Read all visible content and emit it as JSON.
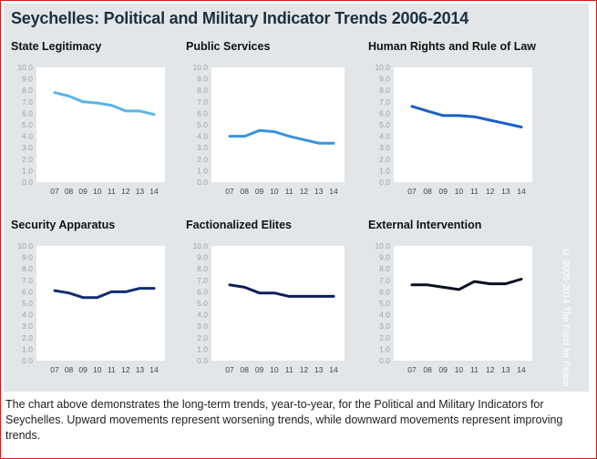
{
  "main_title": "Seychelles:  Political and Military Indicator Trends 2006-2014",
  "copyright": "© 2005-2014 The Fund for Peace",
  "caption": "The chart above demonstrates the long-term trends, year-to-year, for the Political and Military Indicators for Seychelles. Upward movements represent worsening trends, while downward movements represent improving trends.",
  "chart_data": [
    {
      "type": "line",
      "title": "State Legitimacy",
      "color": "#5ab4e8",
      "categories": [
        "07",
        "08",
        "09",
        "10",
        "11",
        "12",
        "13",
        "14"
      ],
      "values": [
        7.8,
        7.5,
        7.0,
        6.9,
        6.7,
        6.2,
        6.2,
        5.9
      ],
      "ylim": [
        0,
        10
      ],
      "yticks": [
        "0.0",
        "1.0",
        "2.0",
        "3.0",
        "4.0",
        "5.0",
        "6.0",
        "7.0",
        "8.0",
        "9.0",
        "10.0"
      ],
      "grid": false
    },
    {
      "type": "line",
      "title": "Public Services",
      "color": "#3a93e0",
      "categories": [
        "07",
        "08",
        "09",
        "10",
        "11",
        "12",
        "13",
        "14"
      ],
      "values": [
        4.0,
        4.0,
        4.5,
        4.4,
        4.0,
        3.7,
        3.4,
        3.4
      ],
      "ylim": [
        0,
        10
      ],
      "yticks": [
        "0.0",
        "1.0",
        "2.0",
        "3.0",
        "4.0",
        "5.0",
        "6.0",
        "7.0",
        "8.0",
        "9.0",
        "10.0"
      ],
      "grid": false
    },
    {
      "type": "line",
      "title": "Human Rights and Rule of Law",
      "color": "#1860c8",
      "categories": [
        "07",
        "08",
        "09",
        "10",
        "11",
        "12",
        "13",
        "14"
      ],
      "values": [
        6.6,
        6.2,
        5.8,
        5.8,
        5.7,
        5.4,
        5.1,
        4.8
      ],
      "ylim": [
        0,
        10
      ],
      "yticks": [
        "0.0",
        "1.0",
        "2.0",
        "3.0",
        "4.0",
        "5.0",
        "6.0",
        "7.0",
        "8.0",
        "9.0",
        "10.0"
      ],
      "grid": false
    },
    {
      "type": "line",
      "title": "Security Apparatus",
      "color": "#0f2e6e",
      "categories": [
        "07",
        "08",
        "09",
        "10",
        "11",
        "12",
        "13",
        "14"
      ],
      "values": [
        6.1,
        5.9,
        5.5,
        5.5,
        6.0,
        6.0,
        6.3,
        6.3
      ],
      "ylim": [
        0,
        10
      ],
      "yticks": [
        "0.0",
        "1.0",
        "2.0",
        "3.0",
        "4.0",
        "5.0",
        "6.0",
        "7.0",
        "8.0",
        "9.0",
        "10.0"
      ],
      "grid": false
    },
    {
      "type": "line",
      "title": "Factionalized Elites",
      "color": "#0b1f5a",
      "categories": [
        "07",
        "08",
        "09",
        "10",
        "11",
        "12",
        "13",
        "14"
      ],
      "values": [
        6.6,
        6.4,
        5.9,
        5.9,
        5.6,
        5.6,
        5.6,
        5.6
      ],
      "ylim": [
        0,
        10
      ],
      "yticks": [
        "0.0",
        "1.0",
        "2.0",
        "3.0",
        "4.0",
        "5.0",
        "6.0",
        "7.0",
        "8.0",
        "9.0",
        "10.0"
      ],
      "grid": false
    },
    {
      "type": "line",
      "title": "External Intervention",
      "color": "#0a0f22",
      "categories": [
        "07",
        "08",
        "09",
        "10",
        "11",
        "12",
        "13",
        "14"
      ],
      "values": [
        6.6,
        6.6,
        6.4,
        6.2,
        6.9,
        6.7,
        6.7,
        7.1
      ],
      "ylim": [
        0,
        10
      ],
      "yticks": [
        "0.0",
        "1.0",
        "2.0",
        "3.0",
        "4.0",
        "5.0",
        "6.0",
        "7.0",
        "8.0",
        "9.0",
        "10.0"
      ],
      "grid": false
    }
  ]
}
